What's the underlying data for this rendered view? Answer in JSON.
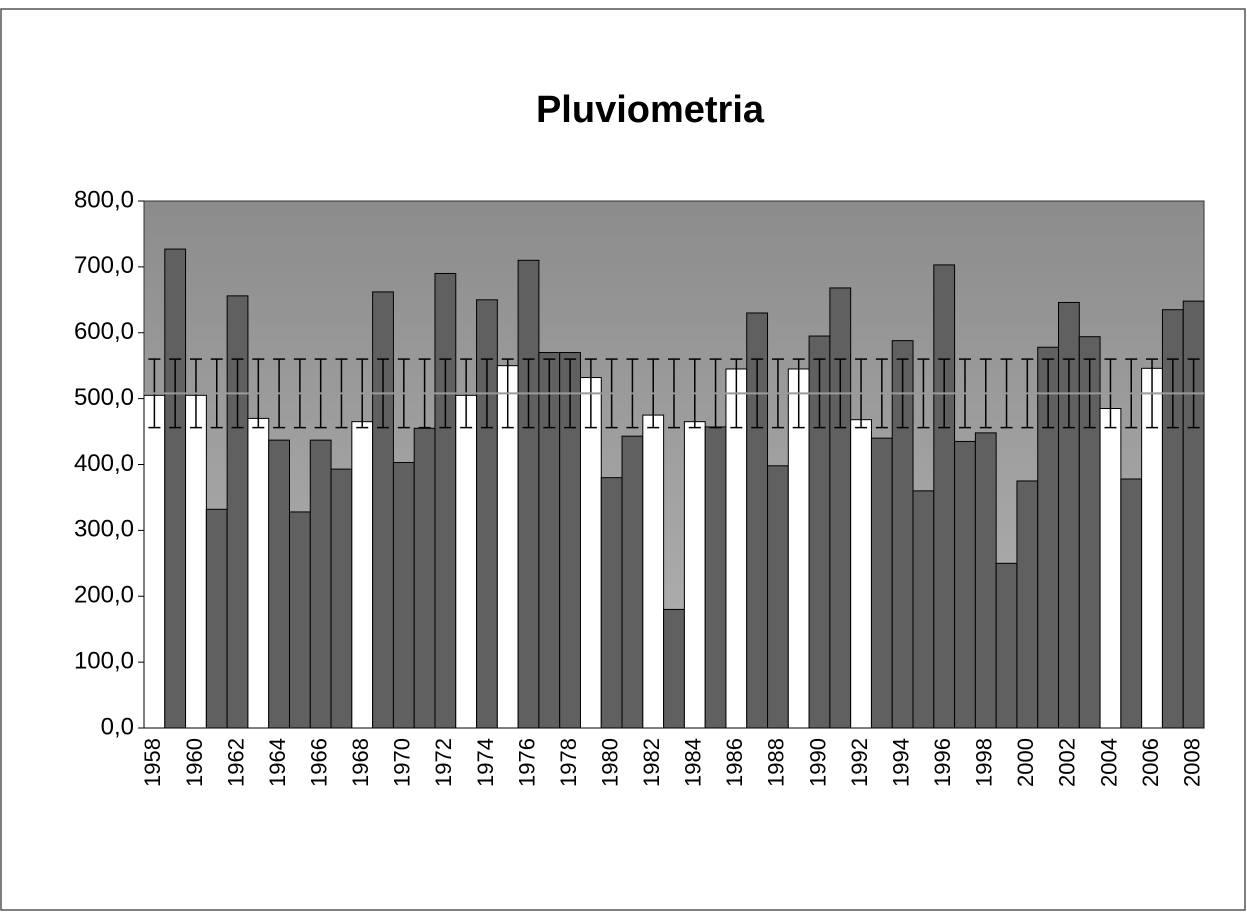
{
  "chart_data": {
    "type": "bar",
    "title": "Pluviometria",
    "categories": [
      "1958",
      null,
      "1960",
      null,
      "1962",
      null,
      "1964",
      null,
      "1966",
      null,
      "1968",
      null,
      "1970",
      null,
      "1972",
      null,
      "1974",
      null,
      "1976",
      null,
      "1978",
      null,
      "1980",
      null,
      "1982",
      null,
      "1984",
      null,
      "1986",
      null,
      "1988",
      null,
      "1990",
      null,
      "1992",
      null,
      "1994",
      null,
      "1996",
      null,
      "1998",
      null,
      "2000",
      null,
      "2002",
      null,
      "2004",
      null,
      "2006",
      null,
      "2008"
    ],
    "values": [
      505,
      727,
      505,
      332,
      656,
      470,
      437,
      328,
      437,
      393,
      465,
      662,
      403,
      455,
      690,
      505,
      650,
      550,
      710,
      570,
      570,
      532,
      380,
      443,
      475,
      180,
      465,
      457,
      545,
      630,
      398,
      545,
      595,
      668,
      468,
      440,
      588,
      360,
      703,
      435,
      448,
      250,
      375,
      578,
      646,
      594,
      485,
      378,
      546,
      635,
      648
    ],
    "colors": [
      "#ffffff",
      "#606060",
      "#ffffff",
      "#606060",
      "#606060",
      "#ffffff",
      "#606060",
      "#606060",
      "#606060",
      "#606060",
      "#ffffff",
      "#606060",
      "#606060",
      "#606060",
      "#606060",
      "#ffffff",
      "#606060",
      "#ffffff",
      "#606060",
      "#606060",
      "#606060",
      "#ffffff",
      "#606060",
      "#606060",
      "#ffffff",
      "#606060",
      "#ffffff",
      "#606060",
      "#ffffff",
      "#606060",
      "#606060",
      "#ffffff",
      "#606060",
      "#606060",
      "#ffffff",
      "#606060",
      "#606060",
      "#606060",
      "#606060",
      "#606060",
      "#606060",
      "#606060",
      "#606060",
      "#606060",
      "#606060",
      "#606060",
      "#ffffff",
      "#606060",
      "#ffffff",
      "#606060",
      "#606060"
    ],
    "mean": 508,
    "error": 52,
    "ylim": [
      0,
      800
    ],
    "yticks": [
      {
        "value": 0,
        "label": "0,0"
      },
      {
        "value": 100,
        "label": "100,0"
      },
      {
        "value": 200,
        "label": "200,0"
      },
      {
        "value": 300,
        "label": "300,0"
      },
      {
        "value": 400,
        "label": "400,0"
      },
      {
        "value": 500,
        "label": "500,0"
      },
      {
        "value": 600,
        "label": "600,0"
      },
      {
        "value": 700,
        "label": "700,0"
      },
      {
        "value": 800,
        "label": "800,0"
      }
    ]
  }
}
